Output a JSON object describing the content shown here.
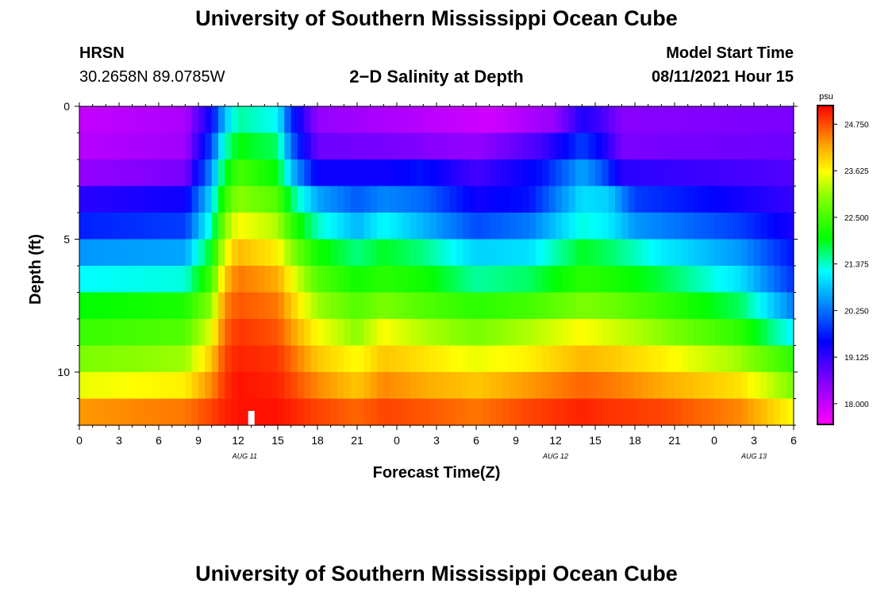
{
  "page": {
    "top_title": "University of Southern Mississippi Ocean Cube",
    "bottom_title": "University of Southern Mississippi Ocean Cube",
    "station": "HRSN",
    "coords": "30.2658N  89.0785W",
    "model_start_label": "Model Start Time",
    "model_start_value": "08/11/2021 Hour 15"
  },
  "chart_data": {
    "type": "heatmap",
    "title": "2−D Salinity at Depth",
    "xlabel": "Forecast Time(Z)",
    "ylabel": "Depth (ft)",
    "x_tick_labels": [
      "0",
      "3",
      "6",
      "9",
      "12",
      "15",
      "18",
      "21",
      "0",
      "3",
      "6",
      "9",
      "12",
      "15",
      "18",
      "21",
      "0",
      "3",
      "6"
    ],
    "x_tick_hours": [
      0,
      3,
      6,
      9,
      12,
      15,
      18,
      21,
      24,
      27,
      30,
      33,
      36,
      39,
      42,
      45,
      48,
      51,
      54
    ],
    "date_labels": [
      {
        "text": "AUG 11",
        "hour": 12.5
      },
      {
        "text": "AUG 12",
        "hour": 36.0
      },
      {
        "text": "AUG 13",
        "hour": 51.0
      }
    ],
    "xlim": [
      0,
      54
    ],
    "y_ticks": [
      0,
      5,
      10
    ],
    "ylim": [
      0,
      12
    ],
    "depth_levels": [
      0.5,
      1.5,
      2.5,
      3.5,
      4.5,
      5.5,
      6.5,
      7.5,
      8.5,
      9.5,
      10.5,
      11.5
    ],
    "level_profiles": [
      {
        "depth": 0.5,
        "knots": [
          [
            0,
            18.0
          ],
          [
            8,
            18.2
          ],
          [
            10,
            19.5
          ],
          [
            11,
            20.8
          ],
          [
            12,
            21.5
          ],
          [
            15,
            21.2
          ],
          [
            16,
            19.8
          ],
          [
            18,
            18.4
          ],
          [
            26,
            18.1
          ],
          [
            31,
            17.9
          ],
          [
            36,
            18.4
          ],
          [
            38,
            19.3
          ],
          [
            39.5,
            19.0
          ],
          [
            41,
            18.5
          ],
          [
            54,
            18.6
          ]
        ]
      },
      {
        "depth": 1.5,
        "knots": [
          [
            0,
            18.1
          ],
          [
            8,
            18.3
          ],
          [
            10,
            20.0
          ],
          [
            11,
            21.4
          ],
          [
            12,
            22.0
          ],
          [
            15,
            21.7
          ],
          [
            16,
            20.2
          ],
          [
            18,
            18.7
          ],
          [
            24,
            18.6
          ],
          [
            30,
            18.4
          ],
          [
            35,
            19.0
          ],
          [
            38,
            19.9
          ],
          [
            39.5,
            19.4
          ],
          [
            41,
            18.6
          ],
          [
            54,
            18.7
          ]
        ]
      },
      {
        "depth": 2.5,
        "knots": [
          [
            0,
            18.4
          ],
          [
            8,
            18.6
          ],
          [
            10,
            20.5
          ],
          [
            11,
            21.9
          ],
          [
            12,
            22.5
          ],
          [
            15,
            22.0
          ],
          [
            16,
            20.8
          ],
          [
            18,
            19.4
          ],
          [
            23,
            19.4
          ],
          [
            26,
            19.6
          ],
          [
            30,
            19.0
          ],
          [
            35,
            19.6
          ],
          [
            38,
            20.6
          ],
          [
            39.5,
            20.1
          ],
          [
            41,
            19.2
          ],
          [
            54,
            18.9
          ]
        ]
      },
      {
        "depth": 3.5,
        "knots": [
          [
            0,
            19.2
          ],
          [
            8,
            19.4
          ],
          [
            10,
            21.0
          ],
          [
            11,
            22.4
          ],
          [
            12,
            23.0
          ],
          [
            15,
            22.6
          ],
          [
            16,
            21.7
          ],
          [
            18,
            20.6
          ],
          [
            21,
            20.1
          ],
          [
            23,
            20.4
          ],
          [
            26,
            20.2
          ],
          [
            30,
            19.4
          ],
          [
            34,
            19.6
          ],
          [
            38,
            21.0
          ],
          [
            40,
            20.9
          ],
          [
            42,
            19.9
          ],
          [
            54,
            19.1
          ]
        ]
      },
      {
        "depth": 4.5,
        "knots": [
          [
            0,
            19.7
          ],
          [
            8,
            19.9
          ],
          [
            10,
            21.4
          ],
          [
            11,
            23.0
          ],
          [
            12,
            23.6
          ],
          [
            15,
            23.2
          ],
          [
            16,
            22.4
          ],
          [
            18,
            21.4
          ],
          [
            21,
            20.7
          ],
          [
            23,
            21.2
          ],
          [
            26,
            20.7
          ],
          [
            30,
            20.0
          ],
          [
            34,
            20.3
          ],
          [
            38,
            21.3
          ],
          [
            40,
            21.1
          ],
          [
            42,
            20.5
          ],
          [
            50,
            19.9
          ],
          [
            54,
            19.3
          ]
        ]
      },
      {
        "depth": 5.5,
        "knots": [
          [
            0,
            20.5
          ],
          [
            8,
            20.6
          ],
          [
            10,
            22.0
          ],
          [
            11,
            23.5
          ],
          [
            12,
            24.1
          ],
          [
            15,
            23.7
          ],
          [
            16,
            23.0
          ],
          [
            18,
            22.1
          ],
          [
            21,
            21.6
          ],
          [
            23,
            21.9
          ],
          [
            26,
            21.6
          ],
          [
            30,
            20.9
          ],
          [
            34,
            21.0
          ],
          [
            38,
            21.9
          ],
          [
            40,
            21.7
          ],
          [
            44,
            21.1
          ],
          [
            50,
            20.5
          ],
          [
            54,
            19.6
          ]
        ]
      },
      {
        "depth": 6.5,
        "knots": [
          [
            0,
            21.2
          ],
          [
            8,
            21.3
          ],
          [
            10,
            22.5
          ],
          [
            11,
            24.0
          ],
          [
            12,
            24.5
          ],
          [
            15,
            24.2
          ],
          [
            16,
            23.6
          ],
          [
            18,
            22.6
          ],
          [
            21,
            22.1
          ],
          [
            23,
            22.3
          ],
          [
            26,
            22.1
          ],
          [
            30,
            21.5
          ],
          [
            34,
            21.7
          ],
          [
            38,
            22.3
          ],
          [
            40,
            22.2
          ],
          [
            44,
            21.8
          ],
          [
            50,
            21.0
          ],
          [
            54,
            19.8
          ]
        ]
      },
      {
        "depth": 7.5,
        "knots": [
          [
            0,
            22.0
          ],
          [
            8,
            22.2
          ],
          [
            10,
            23.0
          ],
          [
            11,
            24.4
          ],
          [
            12,
            24.7
          ],
          [
            15,
            24.5
          ],
          [
            16,
            24.0
          ],
          [
            18,
            23.1
          ],
          [
            21,
            22.6
          ],
          [
            23,
            22.9
          ],
          [
            26,
            22.6
          ],
          [
            30,
            22.3
          ],
          [
            34,
            22.5
          ],
          [
            38,
            22.9
          ],
          [
            40,
            22.8
          ],
          [
            44,
            22.4
          ],
          [
            50,
            21.7
          ],
          [
            54,
            20.3
          ]
        ]
      },
      {
        "depth": 8.5,
        "knots": [
          [
            0,
            22.4
          ],
          [
            8,
            22.6
          ],
          [
            10,
            23.5
          ],
          [
            11,
            24.6
          ],
          [
            12,
            24.9
          ],
          [
            15,
            24.7
          ],
          [
            16,
            24.3
          ],
          [
            18,
            23.6
          ],
          [
            21,
            23.0
          ],
          [
            23,
            23.6
          ],
          [
            26,
            23.2
          ],
          [
            30,
            22.9
          ],
          [
            34,
            23.2
          ],
          [
            38,
            23.6
          ],
          [
            40,
            23.4
          ],
          [
            44,
            23.0
          ],
          [
            50,
            22.3
          ],
          [
            54,
            21.1
          ]
        ]
      },
      {
        "depth": 9.5,
        "knots": [
          [
            0,
            22.9
          ],
          [
            8,
            23.1
          ],
          [
            10,
            24.0
          ],
          [
            11,
            24.8
          ],
          [
            12,
            25.0
          ],
          [
            15,
            24.9
          ],
          [
            16,
            24.6
          ],
          [
            18,
            24.0
          ],
          [
            21,
            23.6
          ],
          [
            23,
            24.0
          ],
          [
            26,
            23.8
          ],
          [
            30,
            23.5
          ],
          [
            34,
            23.7
          ],
          [
            38,
            24.1
          ],
          [
            40,
            24.0
          ],
          [
            44,
            23.7
          ],
          [
            50,
            23.1
          ],
          [
            54,
            22.3
          ]
        ]
      },
      {
        "depth": 10.5,
        "knots": [
          [
            0,
            23.5
          ],
          [
            8,
            23.7
          ],
          [
            10,
            24.4
          ],
          [
            11,
            24.9
          ],
          [
            12,
            25.1
          ],
          [
            15,
            25.0
          ],
          [
            16,
            24.8
          ],
          [
            18,
            24.4
          ],
          [
            21,
            24.0
          ],
          [
            23,
            24.4
          ],
          [
            26,
            24.2
          ],
          [
            30,
            24.0
          ],
          [
            34,
            24.3
          ],
          [
            38,
            24.6
          ],
          [
            40,
            24.5
          ],
          [
            44,
            24.2
          ],
          [
            50,
            23.8
          ],
          [
            54,
            22.9
          ]
        ]
      },
      {
        "depth": 11.5,
        "knots": [
          [
            0,
            24.3
          ],
          [
            8,
            24.5
          ],
          [
            10,
            24.8
          ],
          [
            11,
            25.0
          ],
          [
            12,
            25.1
          ],
          [
            15,
            25.1
          ],
          [
            16,
            25.0
          ],
          [
            18,
            24.8
          ],
          [
            21,
            24.6
          ],
          [
            23,
            24.8
          ],
          [
            26,
            24.7
          ],
          [
            30,
            24.5
          ],
          [
            34,
            24.8
          ],
          [
            38,
            25.0
          ],
          [
            40,
            24.9
          ],
          [
            44,
            24.8
          ],
          [
            50,
            24.4
          ],
          [
            54,
            23.6
          ]
        ]
      }
    ],
    "time_marker_hour": 13,
    "colorbar": {
      "units": "psu",
      "min": 17.5,
      "max": 25.2,
      "tick_values": [
        18.0,
        19.125,
        20.25,
        21.375,
        22.5,
        23.625,
        24.75
      ],
      "tick_labels": [
        "18.000",
        "19.125",
        "20.250",
        "21.375",
        "22.500",
        "23.625",
        "24.750"
      ],
      "stops": [
        {
          "value": 17.5,
          "color": "#ff00ff"
        },
        {
          "value": 18.5,
          "color": "#8800ff"
        },
        {
          "value": 19.5,
          "color": "#0000ff"
        },
        {
          "value": 20.4,
          "color": "#0088ff"
        },
        {
          "value": 21.2,
          "color": "#00ffff"
        },
        {
          "value": 22.0,
          "color": "#00ff00"
        },
        {
          "value": 23.0,
          "color": "#88ff00"
        },
        {
          "value": 23.6,
          "color": "#ffff00"
        },
        {
          "value": 24.2,
          "color": "#ffaa00"
        },
        {
          "value": 24.7,
          "color": "#ff5500"
        },
        {
          "value": 25.2,
          "color": "#ff0000"
        }
      ]
    }
  }
}
